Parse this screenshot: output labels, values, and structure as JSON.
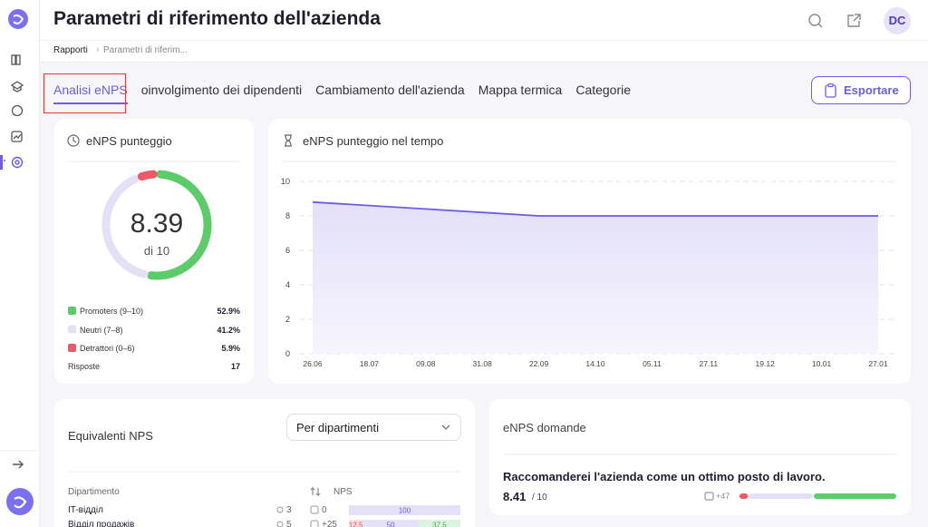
{
  "header": {
    "title": "Parametri di riferimento dell'azienda",
    "user_initials": "DC"
  },
  "breadcrumb": [
    "Rapporti",
    "Parametri di riferim..."
  ],
  "tabs": {
    "items": [
      "Analisi eNPS",
      "oinvolgimento dei dipendenti",
      "Cambiamento dell'azienda",
      "Mappa termica",
      "Categorie"
    ],
    "active": 0
  },
  "export_button": "Esportare",
  "score_card": {
    "title": "eNPS punteggio",
    "score": 8.39,
    "score_suffix": "di 10",
    "legend": [
      {
        "label": "Promoters (9–10)",
        "value": 52.9,
        "value_label": "52.9%",
        "color": "#5ccb6a"
      },
      {
        "label": "Neutri (7–8)",
        "value": 41.2,
        "value_label": "41.2%",
        "color": "#e4e1f7"
      },
      {
        "label": "Detrattori (0–6)",
        "value": 5.9,
        "value_label": "5.9%",
        "color": "#ec5a6a"
      }
    ],
    "responses_label": "Risposte",
    "responses": 17
  },
  "chart_data": {
    "type": "line",
    "title": "eNPS punteggio nel tempo",
    "categories": [
      "26.06",
      "18.07",
      "09.08",
      "31.08",
      "22.09",
      "14.10",
      "05.11",
      "27.11",
      "19.12",
      "10.01",
      "27.01"
    ],
    "values": [
      8.8,
      8.6,
      8.4,
      8.2,
      8.0,
      8.0,
      8.0,
      8.0,
      8.0,
      8.0,
      8.0
    ],
    "color": "#6c5ce7",
    "ylim": [
      0,
      10
    ],
    "yticks": [
      0,
      2,
      4,
      6,
      8,
      10
    ],
    "grid": true
  },
  "equivalents": {
    "title": "Equivalenti NPS",
    "dropdown": "Per dipartimenti",
    "columns": [
      "Dipartimento",
      "NPS"
    ],
    "rows": [
      {
        "name": "IT-відділ",
        "count": 3,
        "nps": 0,
        "bars": [
          {
            "value": 100,
            "color": "#e4e1f7",
            "text_color": "#6c5ce7"
          }
        ]
      },
      {
        "name": "Відділ продажів",
        "count": 5,
        "nps": {
          "value": 25,
          "label": "+25"
        },
        "bars": [
          {
            "value": 12.5,
            "color": "#fbdde0",
            "text_color": "#e0566a"
          },
          {
            "value": 50,
            "color": "#e4e1f7",
            "text_color": "#6c5ce7"
          },
          {
            "value": 37.5,
            "color": "#dcf3df",
            "text_color": "#3fa94f"
          }
        ]
      }
    ]
  },
  "questions": {
    "title": "eNPS domande",
    "items": [
      {
        "text": "Raccomanderei l'azienda come un ottimo posto di lavoro.",
        "score": 8.41,
        "scale": "/ 10",
        "comments": {
          "value": 47,
          "label": "+47"
        },
        "distribution": [
          5.9,
          41.2,
          52.9
        ]
      }
    ]
  }
}
